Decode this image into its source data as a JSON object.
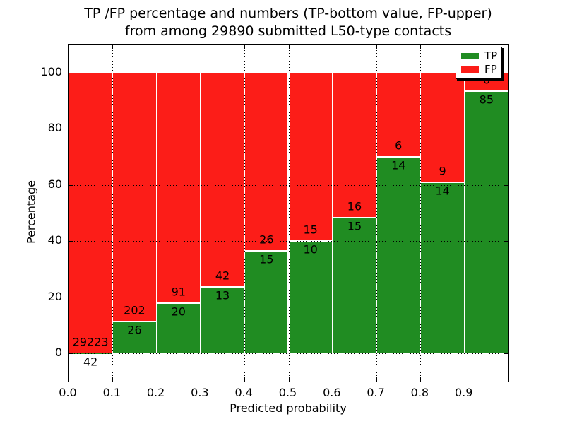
{
  "figure": {
    "title_line1": "TP /FP percentage and numbers (TP-bottom value, FP-upper)",
    "title_line2": "from among 29890 submitted L50-type contacts"
  },
  "chart_data": {
    "type": "bar",
    "stacked": true,
    "title": "TP /FP percentage and numbers (TP-bottom value, FP-upper)\nfrom among 29890 submitted L50-type contacts",
    "xlabel": "Predicted probability",
    "ylabel": "Percentage",
    "xlim": [
      0.0,
      1.0
    ],
    "ylim": [
      -10,
      110
    ],
    "xticks": [
      "0.0",
      "0.1",
      "0.2",
      "0.3",
      "0.4",
      "0.5",
      "0.6",
      "0.7",
      "0.8",
      "0.9"
    ],
    "yticks": [
      0,
      20,
      40,
      60,
      80,
      100
    ],
    "grid": "dotted",
    "legend_position": "upper right",
    "total_submitted": 29890,
    "bin_width": 0.1,
    "bin_starts": [
      0.0,
      0.1,
      0.2,
      0.3,
      0.4,
      0.5,
      0.6,
      0.7,
      0.8,
      0.9
    ],
    "series": [
      {
        "name": "TP",
        "color": "#208c22",
        "counts": [
          42,
          26,
          20,
          13,
          15,
          10,
          15,
          14,
          14,
          85
        ]
      },
      {
        "name": "FP",
        "color": "#fc1d18",
        "counts": [
          29223,
          202,
          91,
          42,
          26,
          15,
          16,
          6,
          9,
          6
        ]
      }
    ],
    "tp_percent": [
      0.14,
      11.4,
      18.02,
      23.64,
      36.59,
      40.0,
      48.39,
      70.0,
      60.87,
      93.41
    ]
  },
  "colors": {
    "tp": "#208c22",
    "fp": "#fc1d18",
    "grid": "#000000",
    "frame": "#000000",
    "background": "#ffffff"
  }
}
